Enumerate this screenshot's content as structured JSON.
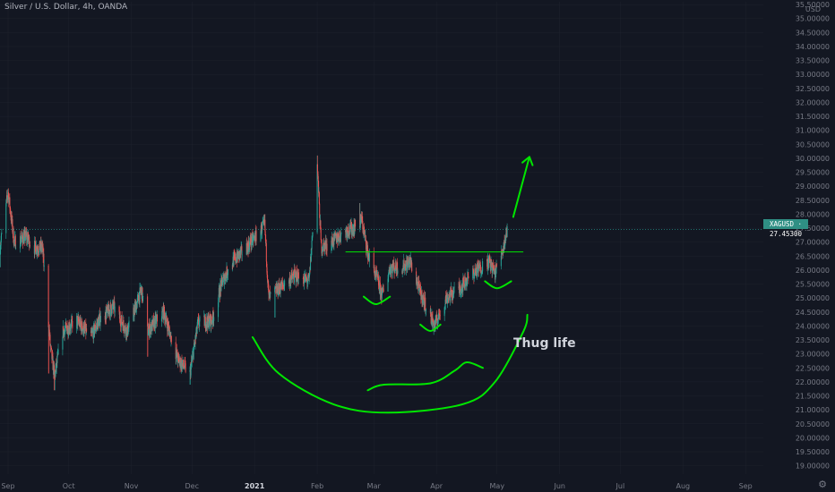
{
  "header": {
    "symbol_title": "Silver / U.S. Dollar, 4h, OANDA"
  },
  "price_tag": {
    "symbol": "XAGUSD",
    "price": "27.45300",
    "label": "XAGUSD · 27.45300"
  },
  "annotation_text": "Thug life",
  "colors": {
    "background": "#131722",
    "up": "#26a69a",
    "down": "#ef5350",
    "drawing": "#00e600",
    "grid": "#1e222d",
    "axis_text": "#787b86"
  },
  "chart_data": {
    "type": "candlestick",
    "symbol": "XAGUSD",
    "timeframe": "4h",
    "currency_label": "USD",
    "ylim": [
      18.7,
      35.6
    ],
    "y_tick_labels": [
      "35.50000",
      "35.00000",
      "34.50000",
      "34.00000",
      "33.50000",
      "33.00000",
      "32.50000",
      "32.00000",
      "31.50000",
      "31.00000",
      "30.50000",
      "30.00000",
      "29.50000",
      "29.00000",
      "28.50000",
      "28.00000",
      "27.50000",
      "27.00000",
      "26.50000",
      "26.00000",
      "25.50000",
      "25.00000",
      "24.50000",
      "24.00000",
      "23.50000",
      "23.00000",
      "22.50000",
      "22.00000",
      "21.50000",
      "21.00000",
      "20.50000",
      "20.00000",
      "19.50000",
      "19.00000"
    ],
    "x_tick_labels": [
      "Sep",
      "Oct",
      "Nov",
      "Dec",
      "2021",
      "Feb",
      "Mar",
      "Apr",
      "May",
      "Jun",
      "Jul",
      "Aug",
      "Sep"
    ],
    "x_tick_bold": [
      false,
      false,
      false,
      false,
      true,
      false,
      false,
      false,
      false,
      false,
      false,
      false,
      false
    ],
    "last_price": 27.453,
    "close_path": [
      [
        "2020-08-28",
        26.8
      ],
      [
        "2020-09-01",
        28.8
      ],
      [
        "2020-09-04",
        27.0
      ],
      [
        "2020-09-10",
        27.2
      ],
      [
        "2020-09-14",
        26.8
      ],
      [
        "2020-09-18",
        26.8
      ],
      [
        "2020-09-22",
        23.2
      ],
      [
        "2020-09-24",
        22.2
      ],
      [
        "2020-09-28",
        23.8
      ],
      [
        "2020-10-05",
        24.2
      ],
      [
        "2020-10-12",
        23.6
      ],
      [
        "2020-10-16",
        24.2
      ],
      [
        "2020-10-23",
        24.7
      ],
      [
        "2020-10-30",
        23.8
      ],
      [
        "2020-11-06",
        25.3
      ],
      [
        "2020-11-09",
        23.8
      ],
      [
        "2020-11-17",
        24.5
      ],
      [
        "2020-11-24",
        22.8
      ],
      [
        "2020-11-30",
        22.3
      ],
      [
        "2020-12-04",
        24.1
      ],
      [
        "2020-12-11",
        24.2
      ],
      [
        "2020-12-16",
        25.6
      ],
      [
        "2020-12-21",
        26.3
      ],
      [
        "2020-12-28",
        26.8
      ],
      [
        "2021-01-06",
        27.6
      ],
      [
        "2021-01-08",
        25.0
      ],
      [
        "2021-01-14",
        25.4
      ],
      [
        "2021-01-21",
        25.8
      ],
      [
        "2021-01-28",
        25.6
      ],
      [
        "2021-02-01",
        29.8
      ],
      [
        "2021-02-03",
        26.8
      ],
      [
        "2021-02-08",
        27.0
      ],
      [
        "2021-02-15",
        27.4
      ],
      [
        "2021-02-19",
        27.5
      ],
      [
        "2021-02-23",
        27.8
      ],
      [
        "2021-02-26",
        26.6
      ],
      [
        "2021-03-03",
        25.6
      ],
      [
        "2021-03-05",
        25.1
      ],
      [
        "2021-03-09",
        26.1
      ],
      [
        "2021-03-15",
        26.1
      ],
      [
        "2021-03-19",
        26.3
      ],
      [
        "2021-03-24",
        25.2
      ],
      [
        "2021-03-31",
        24.0
      ],
      [
        "2021-04-06",
        25.0
      ],
      [
        "2021-04-13",
        25.4
      ],
      [
        "2021-04-19",
        25.9
      ],
      [
        "2021-04-23",
        26.1
      ],
      [
        "2021-04-27",
        26.3
      ],
      [
        "2021-04-30",
        25.9
      ],
      [
        "2021-05-04",
        26.8
      ],
      [
        "2021-05-06",
        27.45
      ]
    ],
    "high_low_extremes": [
      [
        "2020-08-28",
        null,
        26.1
      ],
      [
        "2020-09-01",
        28.9,
        null
      ],
      [
        "2020-09-21",
        null,
        22.3
      ],
      [
        "2020-09-24",
        null,
        21.7
      ],
      [
        "2020-11-09",
        null,
        22.9
      ],
      [
        "2020-11-30",
        null,
        21.9
      ],
      [
        "2021-01-06",
        28.0,
        null
      ],
      [
        "2021-01-11",
        null,
        24.3
      ],
      [
        "2021-02-01",
        30.1,
        null
      ],
      [
        "2021-02-22",
        28.4,
        null
      ],
      [
        "2021-03-31",
        null,
        23.8
      ],
      [
        "2021-05-06",
        27.6,
        null
      ]
    ]
  },
  "drawings": [
    {
      "kind": "horizontal-line",
      "from": [
        "2021-02-15",
        26.65
      ],
      "to": [
        "2021-05-14",
        26.65
      ]
    },
    {
      "kind": "arrow-up",
      "from": [
        "2021-05-09",
        27.9
      ],
      "to": [
        "2021-05-17",
        30.05
      ]
    },
    {
      "kind": "smile-left",
      "points": [
        [
          "2021-02-24",
          25.05
        ],
        [
          "2021-03-02",
          24.78
        ],
        [
          "2021-03-09",
          25.05
        ]
      ]
    },
    {
      "kind": "smile-right",
      "points": [
        [
          "2021-04-25",
          25.6
        ],
        [
          "2021-05-01",
          25.35
        ],
        [
          "2021-05-08",
          25.6
        ]
      ]
    },
    {
      "kind": "smile-center",
      "points": [
        [
          "2021-03-24",
          24.05
        ],
        [
          "2021-03-29",
          23.82
        ],
        [
          "2021-04-03",
          24.05
        ]
      ]
    },
    {
      "kind": "big-smile",
      "points": [
        [
          "2020-12-31",
          23.6
        ],
        [
          "2021-01-13",
          22.3
        ],
        [
          "2021-02-09",
          21.2
        ],
        [
          "2021-03-08",
          20.9
        ],
        [
          "2021-04-14",
          21.2
        ],
        [
          "2021-04-30",
          22.0
        ],
        [
          "2021-05-14",
          23.8
        ],
        [
          "2021-05-16",
          24.4
        ]
      ]
    },
    {
      "kind": "small-smile",
      "points": [
        [
          "2021-02-26",
          21.7
        ],
        [
          "2021-03-06",
          21.9
        ],
        [
          "2021-03-29",
          21.95
        ],
        [
          "2021-04-10",
          22.4
        ],
        [
          "2021-04-16",
          22.7
        ],
        [
          "2021-04-24",
          22.5
        ]
      ]
    }
  ]
}
